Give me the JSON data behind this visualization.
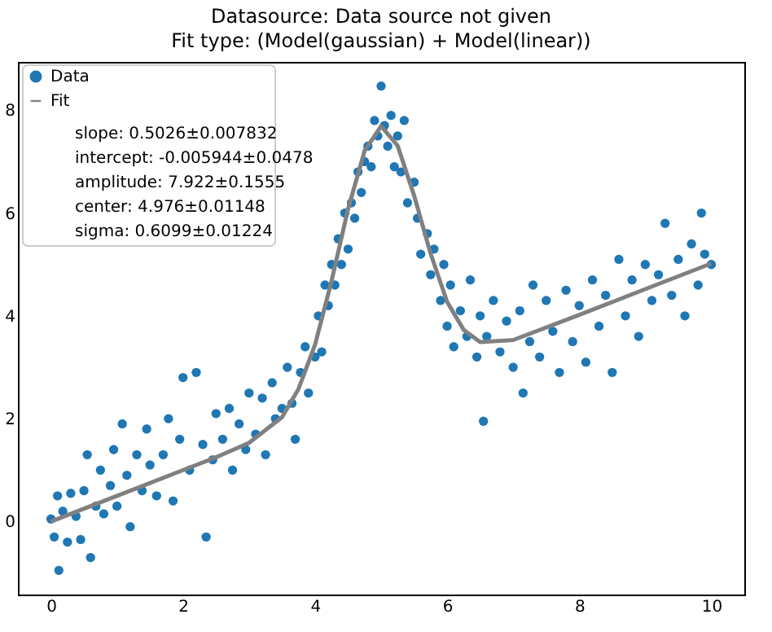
{
  "chart_data": {
    "type": "scatter",
    "title": "Datasource: Data source not given",
    "subtitle": "Fit type: (Model(gaussian) + Model(linear))",
    "xlim": [
      -0.5,
      10.5
    ],
    "ylim": [
      -1.42,
      8.94
    ],
    "xticks": [
      0,
      2,
      4,
      6,
      8,
      10
    ],
    "yticks": [
      0,
      2,
      4,
      6,
      8
    ],
    "grid": false,
    "legend": "top left",
    "annotations": [
      "slope: 0.5026±0.007832",
      "intercept: -0.005944±0.0478",
      "amplitude: 7.922±0.1555",
      "center: 4.976±0.01148",
      "sigma: 0.6099±0.01224"
    ],
    "series": [
      {
        "name": "Data",
        "marker": "circle",
        "color": "#1f77b4",
        "x": [
          0.0,
          0.05,
          0.1,
          0.12,
          0.18,
          0.25,
          0.3,
          0.38,
          0.45,
          0.5,
          0.55,
          0.6,
          0.68,
          0.75,
          0.8,
          0.9,
          0.95,
          1.0,
          1.08,
          1.15,
          1.2,
          1.3,
          1.38,
          1.45,
          1.5,
          1.6,
          1.7,
          1.78,
          1.85,
          1.95,
          2.0,
          2.1,
          2.2,
          2.3,
          2.35,
          2.45,
          2.5,
          2.6,
          2.7,
          2.75,
          2.85,
          2.95,
          3.0,
          3.1,
          3.2,
          3.25,
          3.35,
          3.4,
          3.5,
          3.58,
          3.65,
          3.7,
          3.78,
          3.85,
          3.9,
          4.0,
          4.05,
          4.1,
          4.15,
          4.2,
          4.25,
          4.3,
          4.35,
          4.4,
          4.45,
          4.5,
          4.55,
          4.6,
          4.65,
          4.7,
          4.75,
          4.8,
          4.85,
          4.9,
          4.95,
          5.0,
          5.05,
          5.1,
          5.15,
          5.2,
          5.25,
          5.3,
          5.35,
          5.4,
          5.5,
          5.55,
          5.6,
          5.7,
          5.75,
          5.8,
          5.9,
          5.95,
          6.0,
          6.05,
          6.1,
          6.2,
          6.3,
          6.35,
          6.45,
          6.5,
          6.55,
          6.6,
          6.7,
          6.8,
          6.9,
          7.0,
          7.1,
          7.15,
          7.25,
          7.3,
          7.4,
          7.5,
          7.6,
          7.7,
          7.8,
          7.9,
          8.0,
          8.1,
          8.2,
          8.3,
          8.4,
          8.5,
          8.6,
          8.7,
          8.8,
          8.9,
          9.0,
          9.1,
          9.2,
          9.3,
          9.4,
          9.5,
          9.6,
          9.7,
          9.8,
          9.85,
          9.9,
          10.0
        ],
        "values": [
          0.05,
          -0.3,
          0.5,
          -0.95,
          0.2,
          -0.4,
          0.55,
          0.1,
          -0.35,
          0.6,
          1.3,
          -0.7,
          0.3,
          1.0,
          0.15,
          0.7,
          1.4,
          0.3,
          1.9,
          0.9,
          -0.1,
          1.3,
          0.6,
          1.8,
          1.1,
          0.5,
          1.3,
          2.0,
          0.4,
          1.6,
          2.8,
          1.0,
          2.9,
          1.5,
          -0.3,
          1.2,
          2.1,
          1.6,
          2.2,
          1.0,
          1.9,
          1.4,
          2.5,
          1.7,
          2.4,
          1.3,
          2.7,
          2.0,
          2.2,
          3.0,
          2.3,
          1.6,
          2.9,
          3.4,
          2.5,
          3.2,
          4.0,
          3.3,
          4.6,
          4.2,
          5.0,
          4.6,
          5.5,
          5.0,
          6.0,
          5.3,
          6.2,
          5.9,
          6.8,
          6.4,
          7.0,
          7.3,
          6.9,
          7.8,
          7.5,
          8.47,
          7.7,
          7.3,
          7.9,
          6.9,
          7.5,
          6.8,
          7.8,
          6.2,
          6.6,
          5.9,
          5.2,
          5.6,
          4.8,
          5.3,
          4.3,
          5.0,
          3.8,
          4.6,
          3.4,
          4.1,
          3.6,
          4.7,
          3.2,
          4.0,
          1.95,
          3.6,
          4.3,
          3.3,
          3.9,
          3.0,
          4.1,
          2.5,
          3.5,
          4.6,
          3.2,
          4.3,
          3.7,
          2.9,
          4.5,
          3.5,
          4.2,
          3.1,
          4.7,
          3.8,
          4.4,
          2.9,
          5.1,
          4.0,
          4.7,
          3.6,
          5.0,
          4.3,
          4.8,
          5.8,
          4.4,
          5.1,
          4.0,
          5.4,
          4.6,
          6.0,
          5.2,
          5.0
        ]
      },
      {
        "name": "Fit",
        "type": "line",
        "marker": "none",
        "color": "#808080",
        "line_style": "solid",
        "x": [
          0,
          1,
          2,
          2.5,
          3,
          3.5,
          3.75,
          4,
          4.25,
          4.5,
          4.75,
          5,
          5.25,
          5.5,
          5.75,
          6,
          6.25,
          6.5,
          7,
          8,
          9,
          10
        ],
        "values": [
          0,
          0.5,
          1.0,
          1.25,
          1.53,
          2.03,
          2.58,
          3.44,
          4.68,
          6.08,
          7.21,
          7.69,
          7.31,
          6.34,
          5.21,
          4.27,
          3.73,
          3.49,
          3.53,
          4.02,
          4.52,
          5.02
        ]
      }
    ]
  }
}
